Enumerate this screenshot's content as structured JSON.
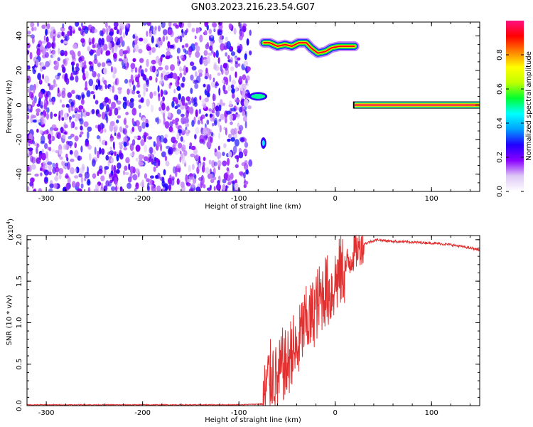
{
  "figure": {
    "title": "GN03.2023.216.23.54.G07"
  },
  "chart_data": [
    {
      "type": "heatmap",
      "title": "GN03.2023.216.23.54.G07",
      "xlabel": "Height of straight line (km)",
      "ylabel": "Frequency (Hz)",
      "xlim": [
        -320,
        150
      ],
      "ylim": [
        -50,
        48
      ],
      "xticks": [
        -300,
        -200,
        -100,
        0,
        100
      ],
      "yticks": [
        -40,
        -20,
        0,
        20,
        40
      ],
      "noise_region_x": [
        -320,
        -88
      ],
      "features": [
        {
          "x": [
            -88,
            -72
          ],
          "y": [
            4,
            6
          ],
          "amplitude": 0.5
        },
        {
          "x": [
            -77,
            -72
          ],
          "y": [
            -24,
            -20
          ],
          "amplitude": 0.45
        },
        {
          "x": [
            -75,
            20
          ],
          "y": [
            28,
            40
          ],
          "amplitude": 0.9,
          "ridge": [
            [
              -74,
              36
            ],
            [
              -68,
              36
            ],
            [
              -60,
              34
            ],
            [
              -52,
              35
            ],
            [
              -45,
              34
            ],
            [
              -38,
              36
            ],
            [
              -30,
              36
            ],
            [
              -25,
              33
            ],
            [
              -18,
              30
            ],
            [
              -10,
              31
            ],
            [
              -4,
              33
            ],
            [
              4,
              34
            ],
            [
              12,
              34
            ],
            [
              20,
              34
            ]
          ]
        },
        {
          "x": [
            20,
            150
          ],
          "y": [
            -1,
            1
          ],
          "amplitude": 0.95
        }
      ],
      "colorbar": {
        "label": "Normalized spectral amplitude",
        "range": [
          0,
          1
        ],
        "ticks": [
          "0.0",
          "0.2",
          "0.4",
          "0.6",
          "0.8"
        ],
        "colors": [
          "#ffffff",
          "#ddc8f5",
          "#8a00ff",
          "#2000ff",
          "#00a0ff",
          "#00ffff",
          "#00ff30",
          "#c0ff00",
          "#ffff00",
          "#ff8000",
          "#ff0000",
          "#ff1080"
        ]
      }
    },
    {
      "type": "line",
      "xlabel": "Height of straight line (km)",
      "ylabel": "SNR (10 * v/v)",
      "yscale_label": "(x10",
      "yscale_exp": "4",
      "yscale_close": ")",
      "xlim": [
        -320,
        150
      ],
      "ylim": [
        0,
        2.05
      ],
      "xticks": [
        -300,
        -200,
        -100,
        0,
        100
      ],
      "yticks": [
        "0.0",
        "0.5",
        "1.0",
        "1.5",
        "2.0"
      ],
      "series": [
        {
          "color": "#e03030",
          "x": [
            -320,
            -200,
            -100,
            -75,
            -70,
            -65,
            -60,
            -55,
            -50,
            -45,
            -40,
            -35,
            -30,
            -25,
            -20,
            -15,
            -10,
            -5,
            0,
            5,
            10,
            15,
            20,
            25,
            30,
            35,
            40,
            45,
            50,
            60,
            80,
            100,
            120,
            140,
            150
          ],
          "y": [
            0.01,
            0.01,
            0.01,
            0.02,
            0.3,
            0.4,
            0.25,
            0.5,
            0.45,
            0.7,
            0.6,
            0.9,
            1.0,
            1.05,
            1.2,
            1.3,
            1.4,
            1.35,
            1.5,
            1.6,
            1.65,
            1.75,
            1.85,
            1.9,
            1.95,
            1.97,
            1.99,
            2.0,
            1.99,
            1.98,
            1.97,
            1.96,
            1.94,
            1.9,
            1.88
          ]
        }
      ]
    }
  ]
}
